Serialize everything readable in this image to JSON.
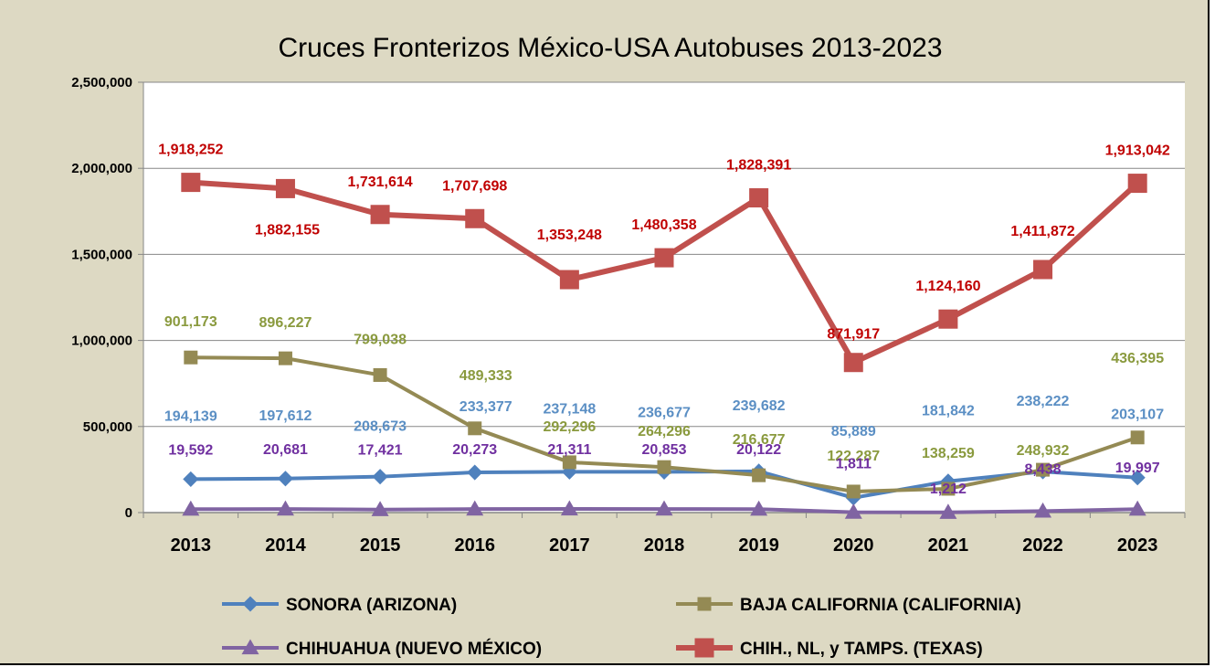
{
  "chart_data": {
    "type": "line",
    "title": "Cruces Fronterizos México-USA Autobuses 2013-2023",
    "xlabel": "",
    "ylabel": "",
    "categories": [
      "2013",
      "2014",
      "2015",
      "2016",
      "2017",
      "2018",
      "2019",
      "2020",
      "2021",
      "2022",
      "2023"
    ],
    "ylim": [
      0,
      2500000
    ],
    "yticks": [
      "0",
      "500,000",
      "1,000,000",
      "1,500,000",
      "2,000,000",
      "2,500,000"
    ],
    "grid": "horizontal",
    "legend_position": "bottom",
    "series": [
      {
        "name": "SONORA (ARIZONA)",
        "color": "#4f81bd",
        "label_color": "#5b8fc4",
        "marker": "diamond",
        "values": [
          194139,
          197612,
          208673,
          233377,
          237148,
          236677,
          239682,
          85889,
          181842,
          238222,
          203107
        ],
        "labels": [
          "194,139",
          "197,612",
          "208,673",
          "233,377",
          "237,148",
          "236,677",
          "239,682",
          "85,889",
          "181,842",
          "238,222",
          "203,107"
        ]
      },
      {
        "name": "BAJA CALIFORNIA (CALIFORNIA)",
        "color": "#948a54",
        "label_color": "#8a9a3e",
        "marker": "square",
        "values": [
          901173,
          896227,
          799038,
          489333,
          292296,
          264296,
          216677,
          122287,
          138259,
          248932,
          436395
        ],
        "labels": [
          "901,173",
          "896,227",
          "799,038",
          "489,333",
          "292,296",
          "264,296",
          "216,677",
          "122,287",
          "138,259",
          "248,932",
          "436,395"
        ]
      },
      {
        "name": "CHIHUAHUA (NUEVO MÉXICO)",
        "color": "#8064a2",
        "label_color": "#7030a0",
        "marker": "triangle",
        "values": [
          19592,
          20681,
          17421,
          20273,
          21311,
          20853,
          20122,
          1811,
          1212,
          8438,
          19997
        ],
        "labels": [
          "19,592",
          "20,681",
          "17,421",
          "20,273",
          "21,311",
          "20,853",
          "20,122",
          "1,811",
          "1,212",
          "8,438",
          "19,997"
        ]
      },
      {
        "name": "CHIH., NL, y TAMPS. (TEXAS)",
        "color": "#c0504d",
        "label_color": "#c00000",
        "marker": "square",
        "values": [
          1918252,
          1882155,
          1731614,
          1707698,
          1353248,
          1480358,
          1828391,
          871917,
          1124160,
          1411872,
          1913042
        ],
        "labels": [
          "1,918,252",
          "1,882,155",
          "1,731,614",
          "1,707,698",
          "1,353,248",
          "1,480,358",
          "1,828,391",
          "871,917",
          "1,124,160",
          "1,411,872",
          "1,913,042"
        ]
      }
    ]
  }
}
